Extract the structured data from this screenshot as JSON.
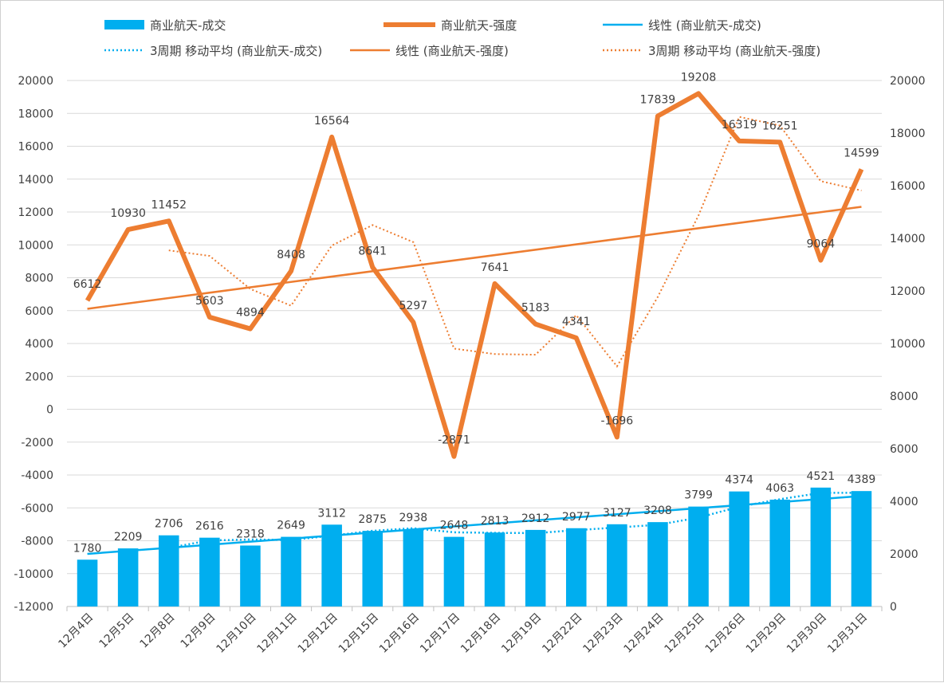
{
  "chart_data": {
    "type": "bar+line",
    "categories": [
      "12月4日",
      "12月5日",
      "12月8日",
      "12月9日",
      "12月10日",
      "12月11日",
      "12月12日",
      "12月15日",
      "12月16日",
      "12月17日",
      "12月18日",
      "12月19日",
      "12月22日",
      "12月23日",
      "12月24日",
      "12月25日",
      "12月26日",
      "12月29日",
      "12月30日",
      "12月31日"
    ],
    "series": [
      {
        "name": "商业航天-成交",
        "type": "bar",
        "axis": "right",
        "color": "#00AEEF",
        "values": [
          1780,
          2209,
          2706,
          2616,
          2318,
          2649,
          3112,
          2875,
          2938,
          2648,
          2813,
          2912,
          2977,
          3127,
          3208,
          3799,
          4374,
          4063,
          4521,
          4389
        ]
      },
      {
        "name": "商业航天-强度",
        "type": "line",
        "axis": "left",
        "color": "#ED7D31",
        "values": [
          6612,
          10930,
          11452,
          5603,
          4894,
          8408,
          16564,
          8641,
          5297,
          -2871,
          7641,
          5183,
          4341,
          -1696,
          17839,
          19208,
          16319,
          16251,
          9064,
          14599
        ]
      }
    ],
    "legend": [
      "商业航天-成交",
      "商业航天-强度",
      "线性 (商业航天-成交)",
      "3周期 移动平均 (商业航天-成交)",
      "线性 (商业航天-强度)",
      "3周期 移动平均 (商业航天-强度)"
    ],
    "legend_position": "top",
    "left_axis": {
      "min": -12000,
      "max": 20000,
      "step": 2000
    },
    "right_axis": {
      "min": 0,
      "max": 20000,
      "step": 2000
    },
    "grid": true,
    "title": ""
  }
}
